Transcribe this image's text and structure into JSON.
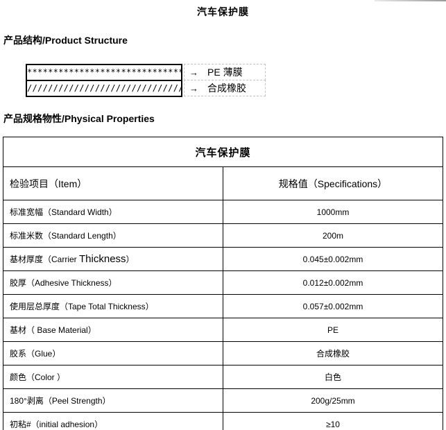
{
  "doc": {
    "title": "汽车保护膜"
  },
  "structure": {
    "heading": "产品结构/Product Structure",
    "layers": [
      {
        "pattern": "*******************************",
        "arrow": "→",
        "label": "PE 薄膜"
      },
      {
        "pattern": "//////////////////////////////",
        "arrow": "→",
        "label": "合成橡胶"
      }
    ]
  },
  "properties": {
    "heading": "产品规格物性/Physical Properties",
    "table": {
      "title": "汽车保护膜",
      "columns": [
        "检验项目（Item）",
        "规格值（Specifications）"
      ],
      "rows": [
        {
          "item": "标准宽幅（Standard Width）",
          "spec": "1000mm"
        },
        {
          "item": "标准米数（Standard Length）",
          "spec": "200m"
        },
        {
          "item_part1": "基材厚度（Carrier ",
          "item_part2": "Thickness",
          "item_part3": "）",
          "spec": "0.045±0.002mm"
        },
        {
          "item": "胶厚（Adhesive Thickness）",
          "spec": "0.012±0.002mm"
        },
        {
          "item": "使用层总厚度（Tape Total Thickness）",
          "spec": "0.057±0.002mm"
        },
        {
          "item": "基材（ Base Material）",
          "spec": "PE"
        },
        {
          "item": "胶系（Glue）",
          "spec": "合成橡胶"
        },
        {
          "item": "颜色（Color ）",
          "spec": "白色"
        },
        {
          "item": "180°剥离（Peel Strength）",
          "spec": "200g/25mm"
        },
        {
          "item": "初粘#（initial adhesion）",
          "spec": "≥10"
        }
      ]
    }
  }
}
